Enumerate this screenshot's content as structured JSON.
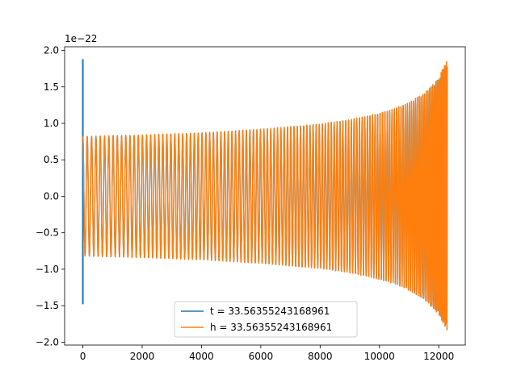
{
  "chart_data": {
    "type": "line",
    "title": "",
    "xlabel": "",
    "ylabel": "",
    "offset_text": "1e−22",
    "xlim": [
      -614,
      12894
    ],
    "ylim": [
      -2.04,
      2.05
    ],
    "x_ticks": [
      0,
      2000,
      4000,
      6000,
      8000,
      10000,
      12000
    ],
    "x_tick_labels": [
      "0",
      "2000",
      "4000",
      "6000",
      "8000",
      "10000",
      "12000"
    ],
    "y_ticks": [
      2.0,
      1.5,
      1.0,
      0.5,
      0.0,
      -0.5,
      -1.0,
      -1.5,
      -2.0
    ],
    "y_tick_labels": [
      "2.0",
      "1.5",
      "1.0",
      "0.5",
      "0.0",
      "−0.5",
      "−1.0",
      "−1.5",
      "−2.0"
    ],
    "grid": false,
    "legend_position": "lower center",
    "series": [
      {
        "name": "t = 33.56355243168961",
        "color": "#1f77b4",
        "initial_spike": {
          "x": 0,
          "max": 1.88,
          "min": -1.48
        },
        "envelope": {
          "x": [
            0,
            2000,
            4000,
            6000,
            8000,
            9000,
            10000,
            10500,
            11000,
            11500,
            12000,
            12290
          ],
          "upper": [
            0.82,
            0.84,
            0.87,
            0.92,
            0.99,
            1.05,
            1.14,
            1.2,
            1.29,
            1.41,
            1.62,
            1.88
          ],
          "lower": [
            -0.82,
            -0.84,
            -0.87,
            -0.92,
            -0.99,
            -1.05,
            -1.14,
            -1.2,
            -1.29,
            -1.41,
            -1.62,
            -1.85
          ]
        }
      },
      {
        "name": "h = 33.56355243168961",
        "color": "#ff7f0e",
        "envelope": {
          "x": [
            0,
            2000,
            4000,
            6000,
            8000,
            9000,
            10000,
            10500,
            11000,
            11500,
            12000,
            12290
          ],
          "upper": [
            0.82,
            0.84,
            0.87,
            0.92,
            0.99,
            1.05,
            1.14,
            1.2,
            1.29,
            1.41,
            1.62,
            1.9
          ],
          "lower": [
            -0.82,
            -0.84,
            -0.87,
            -0.92,
            -0.99,
            -1.05,
            -1.14,
            -1.2,
            -1.29,
            -1.41,
            -1.62,
            -1.85
          ]
        }
      }
    ]
  }
}
